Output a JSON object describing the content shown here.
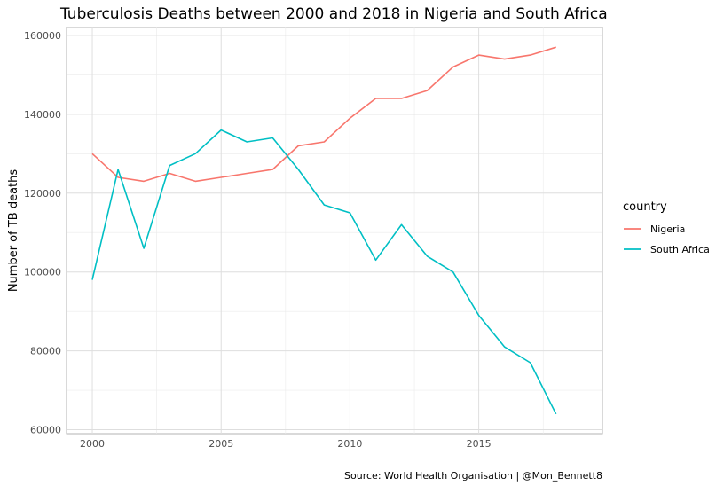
{
  "chart_data": {
    "type": "line",
    "title": "Tuberculosis Deaths between 2000 and 2018 in Nigeria and South Africa",
    "ylabel": "Number of TB deaths",
    "xlabel": "",
    "caption": "Source: World Health Organisation | @Mon_Bennett8",
    "legend_title": "country",
    "legend_position": "right",
    "grid": true,
    "xlim": [
      1999,
      2019.8
    ],
    "ylim": [
      59000,
      162000
    ],
    "x_ticks": [
      2000,
      2005,
      2010,
      2015
    ],
    "y_ticks": [
      60000,
      80000,
      100000,
      120000,
      140000,
      160000
    ],
    "x_tick_labels": [
      "2000",
      "2005",
      "2010",
      "2015"
    ],
    "y_tick_labels": [
      "60000",
      "80000",
      "100000",
      "120000",
      "140000",
      "160000"
    ],
    "x": [
      2000,
      2001,
      2002,
      2003,
      2004,
      2005,
      2006,
      2007,
      2008,
      2009,
      2010,
      2011,
      2012,
      2013,
      2014,
      2015,
      2016,
      2017,
      2018
    ],
    "series": [
      {
        "name": "Nigeria",
        "color": "#F8766D",
        "values": [
          130000,
          124000,
          123000,
          125000,
          123000,
          124000,
          125000,
          126000,
          132000,
          133000,
          139000,
          144000,
          144000,
          146000,
          152000,
          155000,
          154000,
          155000,
          157000
        ]
      },
      {
        "name": "South Africa",
        "color": "#00BFC4",
        "values": [
          98000,
          126000,
          106000,
          127000,
          130000,
          136000,
          133000,
          134000,
          126000,
          117000,
          115000,
          103000,
          112000,
          104000,
          100000,
          89000,
          81000,
          77000,
          64000
        ]
      }
    ]
  }
}
